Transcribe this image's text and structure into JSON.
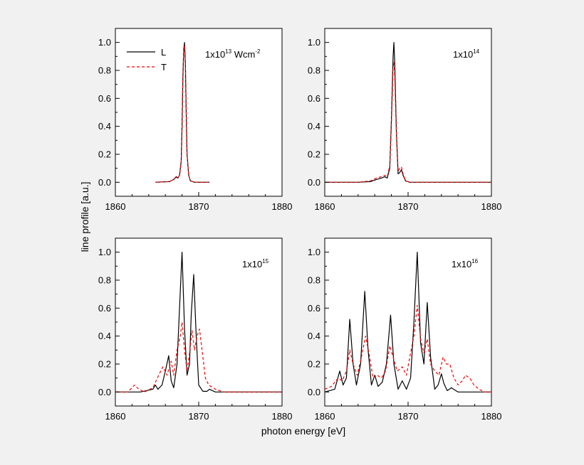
{
  "figure": {
    "xlabel": "photon energy [eV]",
    "ylabel": "line profile [a.u.]"
  },
  "legend": {
    "placement": "top-left of first panel",
    "items": [
      {
        "label": "L",
        "color": "#000000",
        "style": "solid"
      },
      {
        "label": "T",
        "color": "#ff0000",
        "style": "dashed"
      }
    ]
  },
  "chart_data": [
    {
      "type": "line",
      "annotation": {
        "base": "1x10",
        "exp": "13",
        "unit": " Wcm",
        "unit_exp": "-2"
      },
      "xlim": [
        1860,
        1880
      ],
      "ylim": [
        -0.1,
        1.1
      ],
      "xticks": [
        "1860",
        "1870",
        "1880"
      ],
      "yticks": [
        "0.0",
        "0.2",
        "0.4",
        "0.6",
        "0.8",
        "1.0"
      ],
      "grid": false,
      "series": [
        {
          "name": "L",
          "color": "#000000",
          "dash": "",
          "x": [
            1864.8,
            1866.5,
            1867.0,
            1867.3,
            1867.5,
            1867.7,
            1867.9,
            1868.0,
            1868.1,
            1868.2,
            1868.3,
            1868.4,
            1868.5,
            1868.6,
            1868.8,
            1869.0,
            1869.5,
            1870.5,
            1871.3
          ],
          "y": [
            0.0,
            0.005,
            0.02,
            0.04,
            0.03,
            0.05,
            0.15,
            0.4,
            0.75,
            0.95,
            1.0,
            0.85,
            0.5,
            0.2,
            0.05,
            0.01,
            0.0,
            0.0,
            0.0
          ]
        },
        {
          "name": "T",
          "color": "#ff0000",
          "dash": "4,3",
          "x": [
            1864.8,
            1866.5,
            1867.0,
            1867.3,
            1867.5,
            1867.7,
            1867.9,
            1868.0,
            1868.1,
            1868.2,
            1868.3,
            1868.4,
            1868.5,
            1868.6,
            1868.8,
            1869.0,
            1869.5,
            1870.5,
            1871.3
          ],
          "y": [
            0.0,
            0.005,
            0.02,
            0.035,
            0.03,
            0.05,
            0.14,
            0.38,
            0.72,
            0.93,
            0.98,
            0.84,
            0.5,
            0.2,
            0.05,
            0.01,
            0.0,
            0.0,
            0.0
          ]
        }
      ]
    },
    {
      "type": "line",
      "annotation": {
        "base": "1x10",
        "exp": "14",
        "unit": "",
        "unit_exp": ""
      },
      "xlim": [
        1860,
        1880
      ],
      "ylim": [
        -0.1,
        1.1
      ],
      "xticks": [
        "1860",
        "1870",
        "1880"
      ],
      "yticks": [
        "0.0",
        "0.2",
        "0.4",
        "0.6",
        "0.8",
        "1.0"
      ],
      "grid": false,
      "series": [
        {
          "name": "L",
          "color": "#000000",
          "dash": "",
          "x": [
            1860,
            1864,
            1865.5,
            1866.2,
            1866.8,
            1867.2,
            1867.5,
            1867.8,
            1868.0,
            1868.2,
            1868.3,
            1868.4,
            1868.6,
            1868.8,
            1869.0,
            1869.2,
            1869.4,
            1869.7,
            1870.2,
            1872,
            1880
          ],
          "y": [
            0.0,
            0.0,
            0.005,
            0.02,
            0.03,
            0.04,
            0.03,
            0.1,
            0.45,
            0.9,
            1.0,
            0.85,
            0.35,
            0.06,
            0.07,
            0.09,
            0.05,
            0.01,
            0.0,
            0.0,
            0.0
          ]
        },
        {
          "name": "T",
          "color": "#ff0000",
          "dash": "4,3",
          "x": [
            1860,
            1864,
            1865.5,
            1866.2,
            1866.8,
            1867.2,
            1867.5,
            1867.8,
            1868.0,
            1868.2,
            1868.3,
            1868.4,
            1868.6,
            1868.8,
            1869.0,
            1869.2,
            1869.4,
            1869.7,
            1870.2,
            1872,
            1880
          ],
          "y": [
            0.0,
            0.0,
            0.01,
            0.03,
            0.04,
            0.05,
            0.04,
            0.12,
            0.42,
            0.82,
            0.86,
            0.75,
            0.35,
            0.08,
            0.1,
            0.11,
            0.06,
            0.01,
            0.0,
            0.0,
            0.0
          ]
        }
      ]
    },
    {
      "type": "line",
      "annotation": {
        "base": "1x10",
        "exp": "15",
        "unit": "",
        "unit_exp": ""
      },
      "xlim": [
        1860,
        1880
      ],
      "ylim": [
        -0.1,
        1.1
      ],
      "xticks": [
        "1860",
        "1870",
        "1880"
      ],
      "yticks": [
        "0.0",
        "0.2",
        "0.4",
        "0.6",
        "0.8",
        "1.0"
      ],
      "grid": false,
      "series": [
        {
          "name": "L",
          "color": "#000000",
          "dash": "",
          "x": [
            1860,
            1863,
            1864.5,
            1864.8,
            1865.1,
            1865.6,
            1866.0,
            1866.4,
            1866.7,
            1867.0,
            1867.4,
            1867.7,
            1868.0,
            1868.3,
            1868.6,
            1868.9,
            1869.1,
            1869.4,
            1869.7,
            1870.0,
            1870.5,
            1871.0,
            1871.3,
            1872,
            1880
          ],
          "y": [
            0.0,
            0.0,
            0.02,
            0.05,
            0.02,
            0.05,
            0.15,
            0.26,
            0.08,
            0.03,
            0.2,
            0.6,
            1.0,
            0.45,
            0.12,
            0.2,
            0.55,
            0.84,
            0.4,
            0.05,
            0.005,
            0.005,
            0.02,
            0.0,
            0.0
          ]
        },
        {
          "name": "T",
          "color": "#ff0000",
          "dash": "4,3",
          "x": [
            1860,
            1861.5,
            1862.3,
            1862.8,
            1863.5,
            1864.5,
            1865.2,
            1865.7,
            1866.2,
            1866.7,
            1867.0,
            1867.4,
            1867.8,
            1868.0,
            1868.3,
            1868.6,
            1868.9,
            1869.2,
            1869.5,
            1869.8,
            1870.1,
            1870.4,
            1870.8,
            1871.2,
            1872,
            1873,
            1880
          ],
          "y": [
            0.0,
            0.0,
            0.05,
            0.02,
            0.0,
            0.03,
            0.12,
            0.18,
            0.12,
            0.22,
            0.12,
            0.3,
            0.4,
            0.5,
            0.3,
            0.15,
            0.28,
            0.44,
            0.3,
            0.4,
            0.45,
            0.3,
            0.1,
            0.05,
            0.02,
            0.0,
            0.0
          ]
        }
      ]
    },
    {
      "type": "line",
      "annotation": {
        "base": "1x10",
        "exp": "16",
        "unit": "",
        "unit_exp": ""
      },
      "xlim": [
        1860,
        1880
      ],
      "ylim": [
        -0.1,
        1.1
      ],
      "xticks": [
        "1860",
        "1870",
        "1880"
      ],
      "yticks": [
        "0.0",
        "0.2",
        "0.4",
        "0.6",
        "0.8",
        "1.0"
      ],
      "grid": false,
      "series": [
        {
          "name": "L",
          "color": "#000000",
          "dash": "",
          "x": [
            1860,
            1861.2,
            1861.8,
            1862.2,
            1862.6,
            1863.0,
            1863.4,
            1863.8,
            1864.3,
            1864.8,
            1865.2,
            1865.6,
            1866.0,
            1866.4,
            1866.9,
            1867.4,
            1867.9,
            1868.3,
            1868.8,
            1869.3,
            1869.8,
            1870.3,
            1870.7,
            1871.1,
            1871.5,
            1871.9,
            1872.3,
            1872.7,
            1873.2,
            1873.6,
            1874.0,
            1874.3,
            1874.7,
            1875.2,
            1876,
            1877,
            1880
          ],
          "y": [
            0.0,
            0.02,
            0.15,
            0.05,
            0.1,
            0.52,
            0.2,
            0.05,
            0.2,
            0.72,
            0.3,
            0.05,
            0.12,
            0.04,
            0.07,
            0.2,
            0.55,
            0.2,
            0.02,
            0.08,
            0.02,
            0.1,
            0.5,
            1.0,
            0.35,
            0.2,
            0.64,
            0.25,
            0.02,
            0.05,
            0.13,
            0.06,
            0.01,
            0.03,
            0.0,
            0.0,
            0.0
          ]
        },
        {
          "name": "T",
          "color": "#ff0000",
          "dash": "4,3",
          "x": [
            1860,
            1860.8,
            1861.6,
            1862.1,
            1862.6,
            1863.0,
            1863.4,
            1863.9,
            1864.4,
            1864.9,
            1865.3,
            1865.8,
            1866.3,
            1866.8,
            1867.3,
            1867.8,
            1868.2,
            1868.7,
            1869.3,
            1869.8,
            1870.3,
            1870.7,
            1871.1,
            1871.5,
            1871.9,
            1872.3,
            1872.7,
            1873.2,
            1873.7,
            1874.2,
            1874.6,
            1875.0,
            1875.5,
            1876.0,
            1876.5,
            1876.9,
            1877.4,
            1877.9,
            1878.5,
            1879.2,
            1880
          ],
          "y": [
            0.02,
            0.04,
            0.1,
            0.08,
            0.15,
            0.3,
            0.2,
            0.12,
            0.25,
            0.4,
            0.28,
            0.1,
            0.12,
            0.1,
            0.15,
            0.33,
            0.25,
            0.15,
            0.18,
            0.12,
            0.28,
            0.4,
            0.62,
            0.38,
            0.28,
            0.38,
            0.2,
            0.15,
            0.12,
            0.25,
            0.2,
            0.2,
            0.1,
            0.05,
            0.08,
            0.12,
            0.1,
            0.05,
            0.02,
            0.0,
            0.0
          ]
        }
      ]
    }
  ]
}
